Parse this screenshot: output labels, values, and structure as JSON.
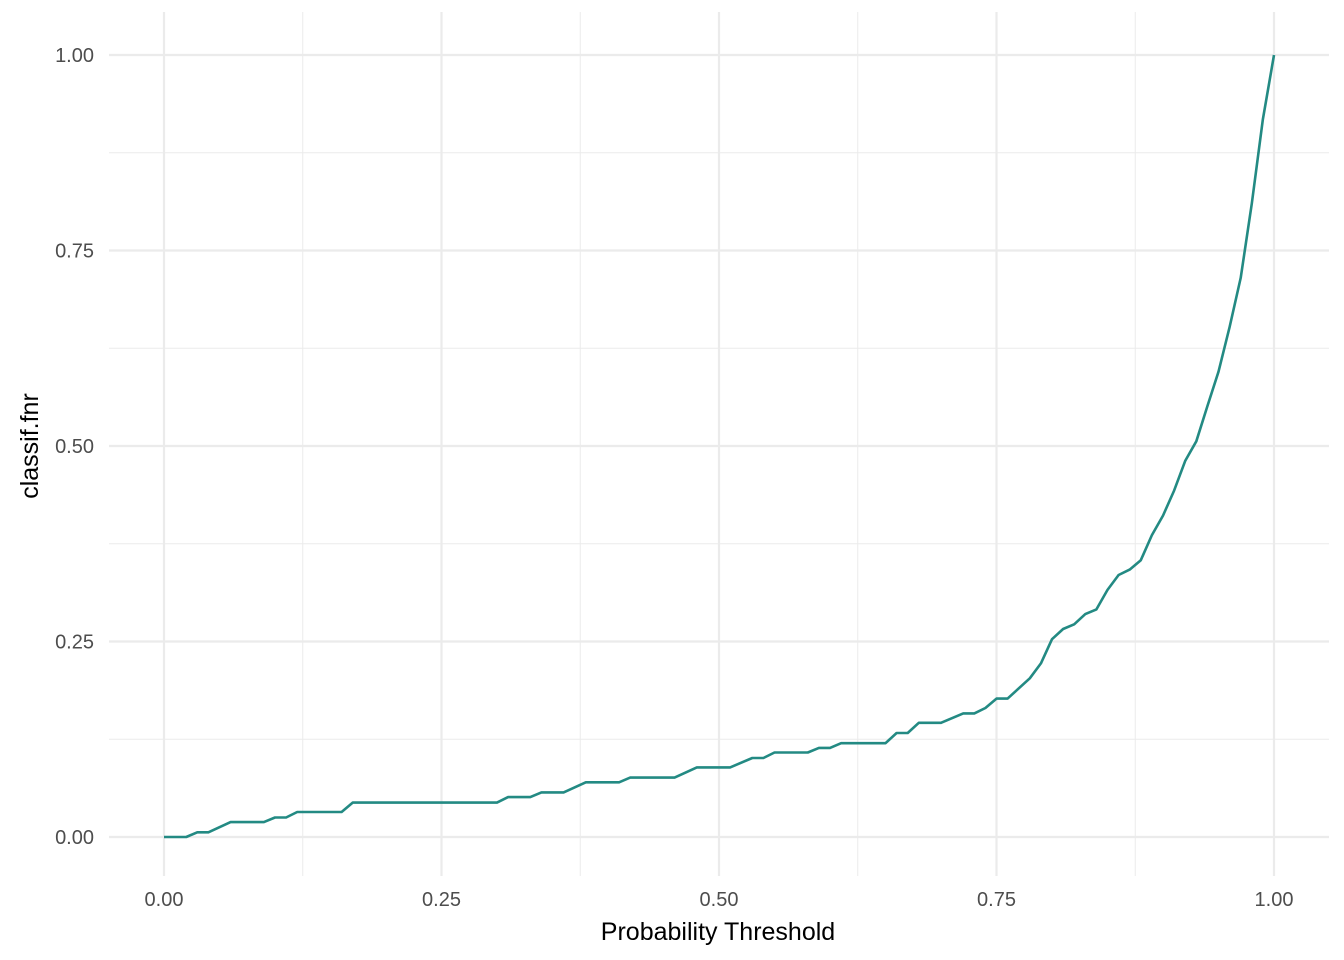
{
  "chart_data": {
    "type": "line",
    "title": "",
    "xlabel": "Probability Threshold",
    "ylabel": "classif.fnr",
    "xlim": [
      0,
      1
    ],
    "ylim": [
      0,
      1
    ],
    "x_ticks": [
      "0.00",
      "0.25",
      "0.50",
      "0.75",
      "1.00"
    ],
    "y_ticks": [
      "0.00",
      "0.25",
      "0.50",
      "0.75",
      "1.00"
    ],
    "grid": true,
    "line_color": "#238A83",
    "grid_color": "#EBEBEB",
    "series": [
      {
        "x": [
          0.0,
          0.02,
          0.03,
          0.04,
          0.06,
          0.09,
          0.1,
          0.11,
          0.12,
          0.16,
          0.17,
          0.3,
          0.31,
          0.33,
          0.34,
          0.36,
          0.38,
          0.41,
          0.42,
          0.46,
          0.48,
          0.51,
          0.53,
          0.54,
          0.55,
          0.58,
          0.59,
          0.6,
          0.61,
          0.65,
          0.66,
          0.67,
          0.68,
          0.7,
          0.72,
          0.73,
          0.74,
          0.75,
          0.76,
          0.78,
          0.79,
          0.8,
          0.81,
          0.82,
          0.83,
          0.84,
          0.85,
          0.86,
          0.87,
          0.88,
          0.89,
          0.9,
          0.91,
          0.92,
          0.93,
          0.94,
          0.95,
          0.96,
          0.97,
          0.98,
          0.99,
          1.0
        ],
        "y": [
          0.0,
          0.0,
          0.006,
          0.006,
          0.019,
          0.019,
          0.025,
          0.025,
          0.032,
          0.032,
          0.044,
          0.044,
          0.051,
          0.051,
          0.057,
          0.057,
          0.07,
          0.07,
          0.076,
          0.076,
          0.089,
          0.089,
          0.101,
          0.101,
          0.108,
          0.108,
          0.114,
          0.114,
          0.12,
          0.12,
          0.133,
          0.133,
          0.146,
          0.146,
          0.158,
          0.158,
          0.165,
          0.177,
          0.177,
          0.203,
          0.222,
          0.253,
          0.266,
          0.272,
          0.285,
          0.291,
          0.316,
          0.335,
          0.342,
          0.354,
          0.386,
          0.411,
          0.443,
          0.481,
          0.506,
          0.551,
          0.595,
          0.652,
          0.715,
          0.81,
          0.918,
          1.0
        ]
      }
    ]
  }
}
